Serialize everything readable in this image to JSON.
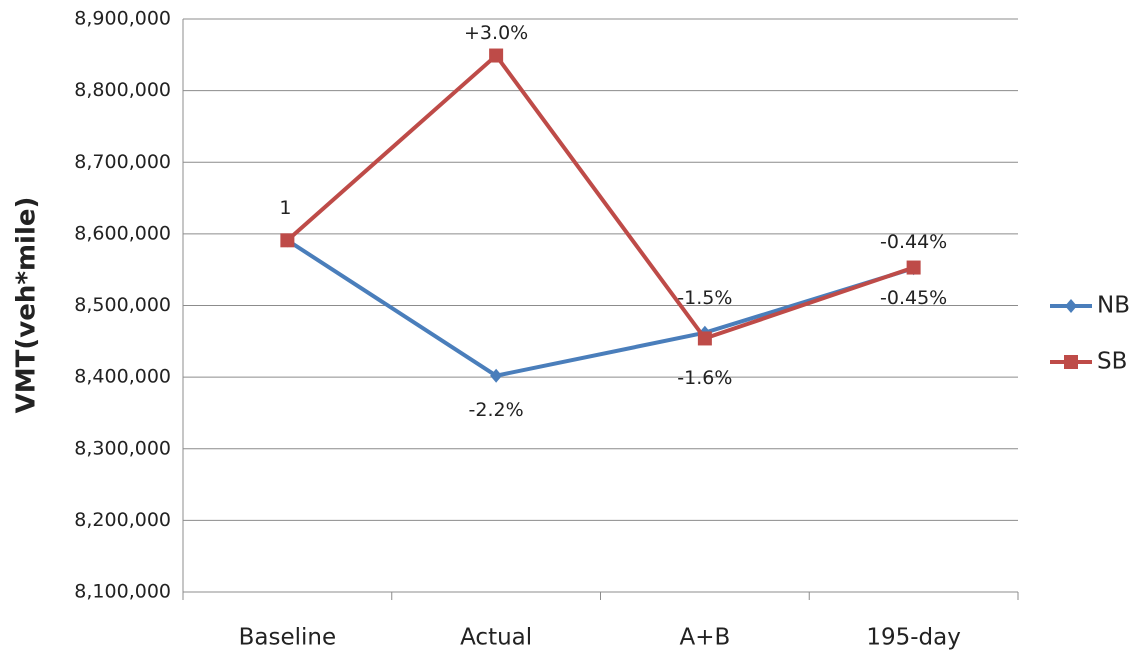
{
  "chart_data": {
    "type": "line",
    "y_label": "VMT(veh*mile)",
    "categories": [
      "Baseline",
      "Actual",
      "A+B",
      "195-day"
    ],
    "series": [
      {
        "name": "NB",
        "color": "#4a7ebb",
        "marker": "diamond",
        "values": [
          8591000,
          8402000,
          8462000,
          8552000
        ],
        "labels": [
          null,
          "-2.2%",
          "-1.5%",
          "-0.45%"
        ]
      },
      {
        "name": "SB",
        "color": "#be4b48",
        "marker": "square",
        "values": [
          8591000,
          8849000,
          8454000,
          8553000
        ],
        "labels": [
          "1",
          "+3.0%",
          "-1.6%",
          "-0.44%"
        ]
      }
    ],
    "ylim": [
      8100000,
      8900000
    ],
    "yticks": [
      {
        "value": 8100000,
        "label": "8,100,000"
      },
      {
        "value": 8200000,
        "label": "8,200,000"
      },
      {
        "value": 8300000,
        "label": "8,300,000"
      },
      {
        "value": 8400000,
        "label": "8,400,000"
      },
      {
        "value": 8500000,
        "label": "8,500,000"
      },
      {
        "value": 8600000,
        "label": "8,600,000"
      },
      {
        "value": 8700000,
        "label": "8,700,000"
      },
      {
        "value": 8800000,
        "label": "8,800,000"
      },
      {
        "value": 8900000,
        "label": "8,900,000"
      }
    ],
    "grid": true,
    "legend": "right"
  }
}
